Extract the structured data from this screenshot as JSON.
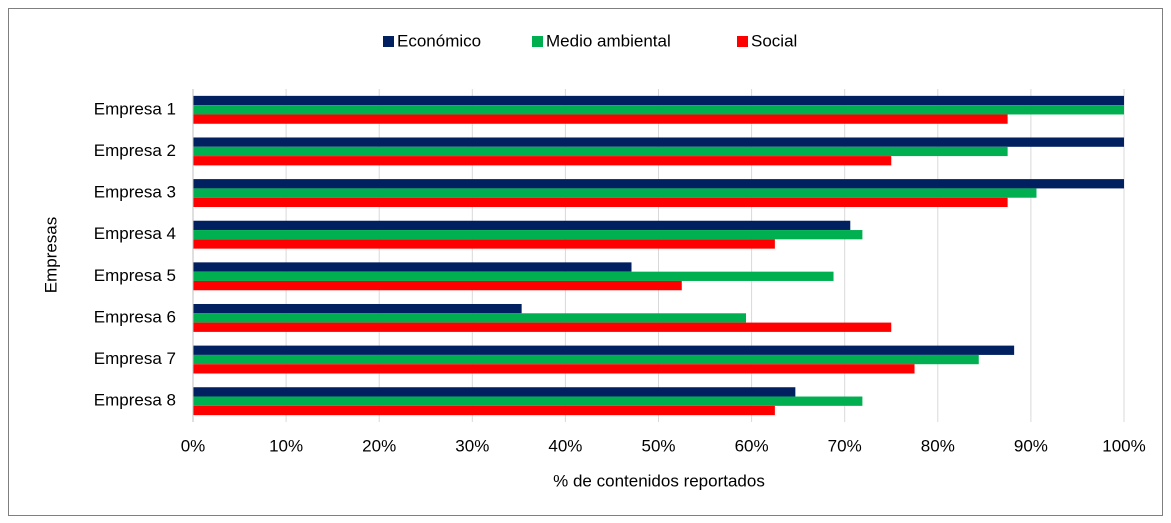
{
  "chart_data": {
    "type": "barh",
    "categories": [
      "Empresa 1",
      "Empresa 2",
      "Empresa 3",
      "Empresa 4",
      "Empresa 5",
      "Empresa 6",
      "Empresa 7",
      "Empresa 8"
    ],
    "series": [
      {
        "name": "Económico",
        "color": "#002060",
        "values": [
          100,
          100,
          100,
          70.6,
          47.1,
          35.3,
          88.2,
          64.7
        ]
      },
      {
        "name": "Medio ambiental",
        "color": "#00b050",
        "values": [
          100,
          87.5,
          90.6,
          71.9,
          68.8,
          59.4,
          84.4,
          71.9
        ]
      },
      {
        "name": "Social",
        "color": "#ff0000",
        "values": [
          87.5,
          75,
          87.5,
          62.5,
          52.5,
          75,
          77.5,
          62.5
        ]
      }
    ],
    "xlabel": "% de contenidos reportados",
    "ylabel": "Empresas",
    "xlim": [
      0,
      100
    ],
    "xticks": [
      {
        "value": 0,
        "label": "0%"
      },
      {
        "value": 10,
        "label": "10%"
      },
      {
        "value": 20,
        "label": "20%"
      },
      {
        "value": 30,
        "label": "30%"
      },
      {
        "value": 40,
        "label": "40%"
      },
      {
        "value": 50,
        "label": "50%"
      },
      {
        "value": 60,
        "label": "60%"
      },
      {
        "value": 70,
        "label": "70%"
      },
      {
        "value": 80,
        "label": "80%"
      },
      {
        "value": 90,
        "label": "90%"
      },
      {
        "value": 100,
        "label": "100%"
      }
    ],
    "grid": true,
    "legend": "top"
  }
}
